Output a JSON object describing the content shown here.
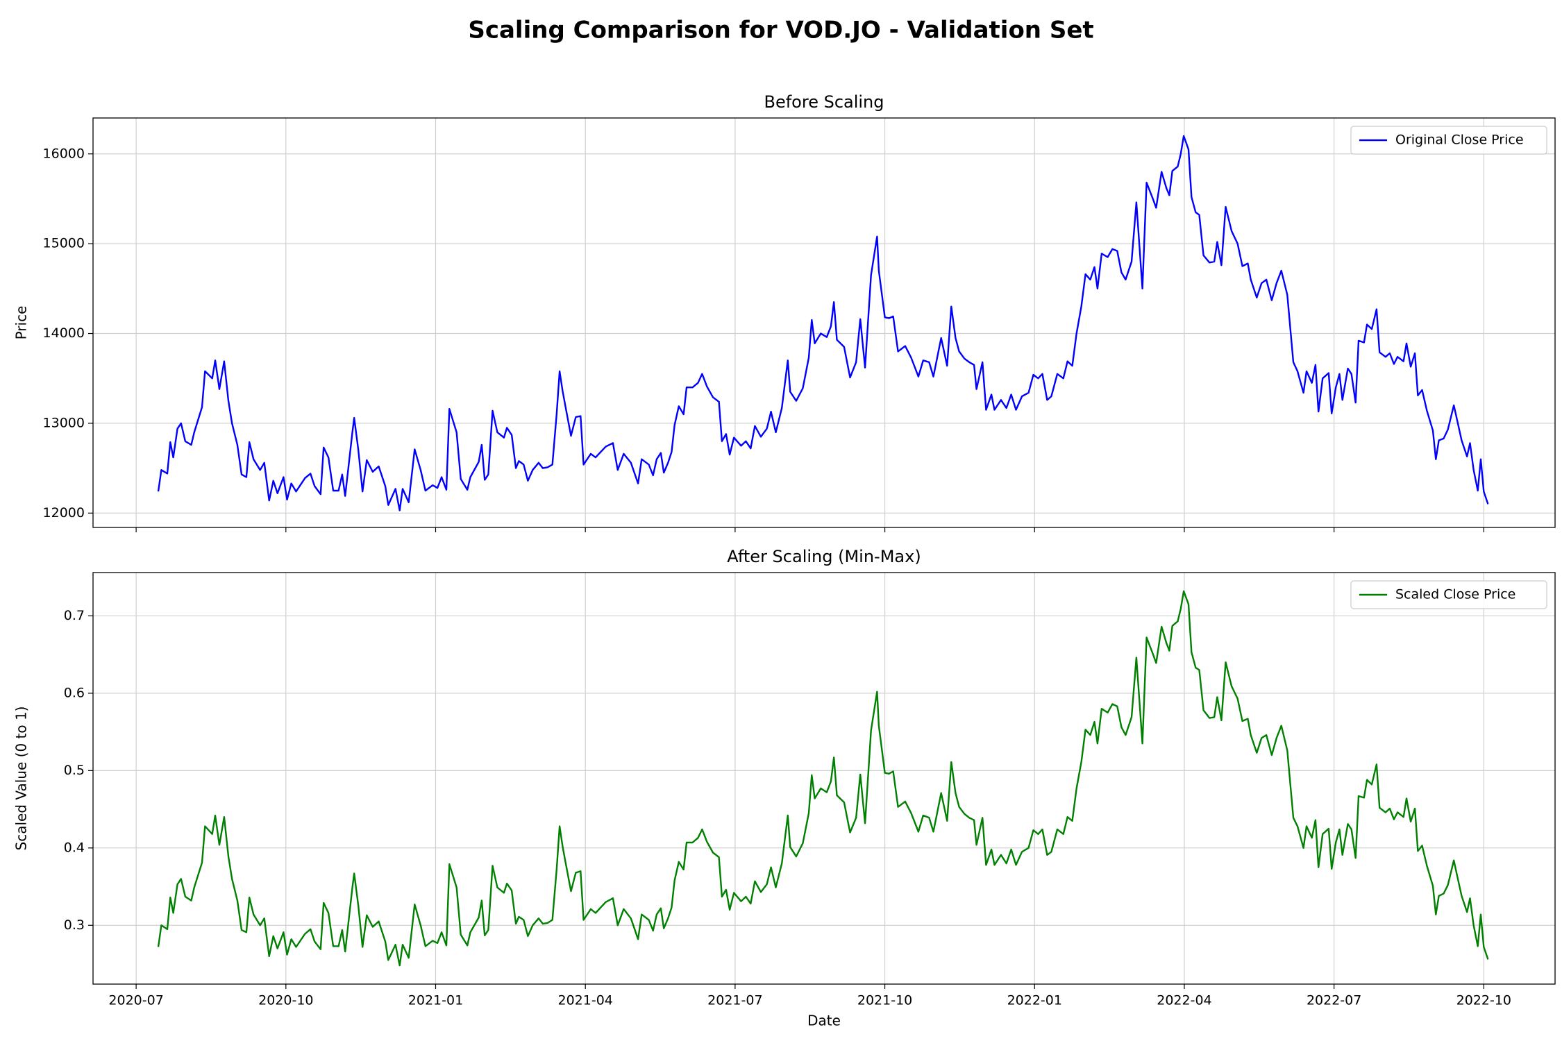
{
  "title": "Scaling Comparison for VOD.JO - Validation Set",
  "chart_data": [
    {
      "type": "line",
      "title": "Before Scaling",
      "ylabel": "Price",
      "sharex": true,
      "grid": true,
      "legend": "upper right",
      "ylim": [
        11840,
        16400
      ],
      "yticks": [
        12000,
        13000,
        14000,
        15000,
        16000
      ],
      "series": [
        {
          "name": "Original Close Price",
          "color": "#0000ff",
          "values": [
            12240,
            12480,
            12440,
            12790,
            12620,
            12940,
            13000,
            12800,
            12760,
            12900,
            13180,
            13580,
            13500,
            13700,
            13380,
            13690,
            13250,
            13000,
            12760,
            12430,
            12400,
            12790,
            12600,
            12480,
            12560,
            12140,
            12360,
            12220,
            12400,
            12150,
            12330,
            12240,
            12390,
            12440,
            12300,
            12210,
            12730,
            12620,
            12250,
            12250,
            12430,
            12190,
            12900,
            13060,
            12700,
            12240,
            12590,
            12460,
            12520,
            12300,
            12090,
            12270,
            12030,
            12270,
            12120,
            12710,
            12480,
            12250,
            12310,
            12280,
            12400,
            12260,
            13160,
            12900,
            12380,
            12260,
            12400,
            12570,
            12760,
            12370,
            12430,
            13140,
            12900,
            12840,
            12950,
            12870,
            12500,
            12580,
            12540,
            12360,
            12480,
            12560,
            12500,
            12510,
            12540,
            13100,
            13580,
            13360,
            13180,
            12860,
            13070,
            13080,
            12540,
            12660,
            12620,
            12740,
            12780,
            12480,
            12660,
            12560,
            12330,
            12600,
            12540,
            12420,
            12600,
            12670,
            12450,
            12560,
            12680,
            12980,
            13190,
            13100,
            13400,
            13400,
            13450,
            13550,
            13410,
            13290,
            13240,
            12800,
            12880,
            12650,
            12840,
            12750,
            12800,
            12720,
            12970,
            12850,
            12940,
            13130,
            12900,
            13170,
            13700,
            13350,
            13250,
            13390,
            13730,
            14150,
            13890,
            14000,
            13960,
            14080,
            14350,
            13930,
            13850,
            13510,
            13680,
            14160,
            13620,
            14650,
            15080,
            14700,
            14180,
            14170,
            14190,
            13800,
            13860,
            13730,
            13520,
            13700,
            13680,
            13520,
            13950,
            13640,
            14300,
            13950,
            13800,
            13720,
            13680,
            13650,
            13380,
            13680,
            13150,
            13320,
            13150,
            13260,
            13170,
            13320,
            13150,
            13300,
            13340,
            13540,
            13500,
            13550,
            13260,
            13300,
            13550,
            13500,
            13690,
            13640,
            14000,
            14300,
            14660,
            14600,
            14740,
            14500,
            14890,
            14850,
            14940,
            14920,
            14680,
            14600,
            14800,
            15460,
            14500,
            15680,
            15510,
            15400,
            15800,
            15620,
            15540,
            15810,
            15860,
            16000,
            16200,
            16050,
            15520,
            15350,
            15320,
            14870,
            14790,
            14800,
            15020,
            14760,
            15410,
            15140,
            15000,
            14750,
            14780,
            14600,
            14400,
            14560,
            14600,
            14370,
            14560,
            14700,
            14430,
            13680,
            13580,
            13340,
            13580,
            13450,
            13650,
            13130,
            13500,
            13560,
            13110,
            13400,
            13550,
            13260,
            13610,
            13550,
            13230,
            13920,
            13900,
            14100,
            14050,
            14270,
            13790,
            13740,
            13780,
            13660,
            13740,
            13690,
            13890,
            13630,
            13780,
            13310,
            13370,
            13140,
            12920,
            12600,
            12810,
            12830,
            12930,
            13200,
            13050,
            12810,
            12630,
            12780,
            12480,
            12250,
            12600,
            12240,
            12100
          ]
        }
      ]
    },
    {
      "type": "line",
      "title": "After Scaling (Min-Max)",
      "xlabel": "Date",
      "ylabel": "Scaled Value (0 to 1)",
      "grid": true,
      "legend": "upper right",
      "xlim": [
        2020.428,
        2022.869
      ],
      "xticks": [
        {
          "value": 2020.5,
          "label": "2020-07"
        },
        {
          "value": 2020.75,
          "label": "2020-10"
        },
        {
          "value": 2021.0,
          "label": "2021-01"
        },
        {
          "value": 2021.25,
          "label": "2021-04"
        },
        {
          "value": 2021.5,
          "label": "2021-07"
        },
        {
          "value": 2021.75,
          "label": "2021-10"
        },
        {
          "value": 2022.0,
          "label": "2022-01"
        },
        {
          "value": 2022.25,
          "label": "2022-04"
        },
        {
          "value": 2022.5,
          "label": "2022-07"
        },
        {
          "value": 2022.75,
          "label": "2022-10"
        }
      ],
      "ylim": [
        0.224,
        0.756
      ],
      "yticks": [
        0.3,
        0.4,
        0.5,
        0.6,
        0.7
      ],
      "x": [
        2020.537,
        2020.542,
        2020.552,
        2020.557,
        2020.562,
        2020.569,
        2020.575,
        2020.582,
        2020.592,
        2020.597,
        2020.61,
        2020.615,
        2020.627,
        2020.632,
        2020.639,
        2020.647,
        2020.654,
        2020.66,
        2020.669,
        2020.676,
        2020.684,
        2020.689,
        2020.696,
        2020.707,
        2020.714,
        2020.722,
        2020.729,
        2020.736,
        2020.746,
        2020.752,
        2020.759,
        2020.767,
        2020.782,
        2020.791,
        2020.798,
        2020.808,
        2020.813,
        2020.821,
        2020.829,
        2020.838,
        2020.844,
        2020.849,
        2020.861,
        2020.864,
        2020.871,
        2020.878,
        2020.885,
        2020.895,
        2020.905,
        2020.916,
        2020.921,
        2020.933,
        2020.94,
        2020.945,
        2020.955,
        2020.965,
        2020.975,
        2020.983,
        2020.995,
        2021.003,
        2021.01,
        2021.018,
        2021.023,
        2021.035,
        2021.042,
        2021.053,
        2021.058,
        2021.072,
        2021.077,
        2021.082,
        2021.088,
        2021.095,
        2021.103,
        2021.114,
        2021.119,
        2021.127,
        2021.134,
        2021.139,
        2021.147,
        2021.154,
        2021.162,
        2021.172,
        2021.179,
        2021.187,
        2021.195,
        2021.202,
        2021.207,
        2021.212,
        2021.217,
        2021.226,
        2021.234,
        2021.242,
        2021.247,
        2021.259,
        2021.267,
        2021.284,
        2021.296,
        2021.304,
        2021.314,
        2021.326,
        2021.338,
        2021.344,
        2021.356,
        2021.363,
        2021.369,
        2021.376,
        2021.381,
        2021.388,
        2021.394,
        2021.399,
        2021.406,
        2021.414,
        2021.419,
        2021.429,
        2021.438,
        2021.445,
        2021.453,
        2021.463,
        2021.473,
        2021.478,
        2021.485,
        2021.491,
        2021.498,
        2021.51,
        2021.518,
        2021.526,
        2021.533,
        2021.543,
        2021.553,
        2021.56,
        2021.568,
        2021.578,
        2021.588,
        2021.592,
        2021.602,
        2021.613,
        2021.623,
        2021.628,
        2021.633,
        2021.643,
        2021.653,
        2021.66,
        2021.665,
        2021.67,
        2021.682,
        2021.692,
        2021.702,
        2021.709,
        2021.717,
        2021.727,
        2021.737,
        2021.74,
        2021.75,
        2021.757,
        2021.764,
        2021.772,
        2021.784,
        2021.794,
        2021.806,
        2021.814,
        2021.824,
        2021.831,
        2021.844,
        2021.854,
        2021.861,
        2021.868,
        2021.874,
        2021.883,
        2021.891,
        2021.899,
        2021.903,
        2021.913,
        2021.919,
        2021.928,
        2021.933,
        2021.944,
        2021.953,
        2021.961,
        2021.969,
        2021.979,
        2021.99,
        2021.998,
        2022.006,
        2022.013,
        2022.021,
        2022.028,
        2022.038,
        2022.048,
        2022.055,
        2022.063,
        2022.07,
        2022.078,
        2022.085,
        2022.093,
        2022.1,
        2022.105,
        2022.112,
        2022.122,
        2022.13,
        2022.138,
        2022.145,
        2022.152,
        2022.162,
        2022.17,
        2022.18,
        2022.187,
        2022.197,
        2022.203,
        2022.212,
        2022.22,
        2022.225,
        2022.23,
        2022.239,
        2022.244,
        2022.249,
        2022.257,
        2022.262,
        2022.269,
        2022.275,
        2022.282,
        2022.292,
        2022.3,
        2022.305,
        2022.312,
        2022.319,
        2022.329,
        2022.339,
        2022.347,
        2022.356,
        2022.361,
        2022.371,
        2022.379,
        2022.387,
        2022.396,
        2022.404,
        2022.412,
        2022.422,
        2022.432,
        2022.439,
        2022.449,
        2022.454,
        2022.463,
        2022.469,
        2022.474,
        2022.481,
        2022.491,
        2022.496,
        2022.503,
        2022.509,
        2022.514,
        2022.523,
        2022.529,
        2022.536,
        2022.541,
        2022.55,
        2022.555,
        2022.563,
        2022.571,
        2022.576,
        2022.586,
        2022.593,
        2022.6,
        2022.606,
        2022.616,
        2022.621,
        2022.628,
        2022.635,
        2022.64,
        2022.647,
        2022.655,
        2022.665,
        2022.67,
        2022.675,
        2022.683,
        2022.69,
        2022.7,
        2022.705,
        2022.713,
        2022.722,
        2022.727,
        2022.733,
        2022.74,
        2022.745,
        2022.75,
        2022.757
      ],
      "series": [
        {
          "name": "Scaled Close Price",
          "color": "#008000",
          "values": [
            0.272,
            0.3,
            0.295,
            0.336,
            0.316,
            0.353,
            0.36,
            0.337,
            0.332,
            0.349,
            0.381,
            0.428,
            0.418,
            0.442,
            0.404,
            0.44,
            0.389,
            0.36,
            0.332,
            0.294,
            0.291,
            0.336,
            0.314,
            0.3,
            0.309,
            0.26,
            0.286,
            0.27,
            0.291,
            0.262,
            0.282,
            0.272,
            0.289,
            0.295,
            0.279,
            0.269,
            0.329,
            0.316,
            0.273,
            0.273,
            0.294,
            0.266,
            0.349,
            0.367,
            0.325,
            0.272,
            0.313,
            0.298,
            0.305,
            0.279,
            0.255,
            0.275,
            0.248,
            0.275,
            0.258,
            0.327,
            0.3,
            0.273,
            0.28,
            0.277,
            0.291,
            0.274,
            0.379,
            0.349,
            0.288,
            0.274,
            0.291,
            0.31,
            0.332,
            0.287,
            0.294,
            0.377,
            0.349,
            0.342,
            0.354,
            0.345,
            0.302,
            0.311,
            0.307,
            0.286,
            0.3,
            0.309,
            0.302,
            0.303,
            0.307,
            0.372,
            0.428,
            0.402,
            0.381,
            0.344,
            0.368,
            0.37,
            0.307,
            0.321,
            0.316,
            0.33,
            0.335,
            0.3,
            0.321,
            0.309,
            0.282,
            0.314,
            0.307,
            0.293,
            0.314,
            0.322,
            0.296,
            0.309,
            0.323,
            0.358,
            0.382,
            0.372,
            0.407,
            0.407,
            0.413,
            0.424,
            0.408,
            0.394,
            0.388,
            0.337,
            0.346,
            0.32,
            0.342,
            0.331,
            0.337,
            0.328,
            0.357,
            0.343,
            0.353,
            0.375,
            0.349,
            0.38,
            0.442,
            0.401,
            0.389,
            0.406,
            0.445,
            0.494,
            0.464,
            0.477,
            0.472,
            0.486,
            0.517,
            0.468,
            0.459,
            0.42,
            0.439,
            0.495,
            0.432,
            0.552,
            0.602,
            0.558,
            0.497,
            0.496,
            0.499,
            0.453,
            0.46,
            0.445,
            0.421,
            0.442,
            0.439,
            0.421,
            0.471,
            0.435,
            0.511,
            0.471,
            0.453,
            0.444,
            0.439,
            0.436,
            0.404,
            0.439,
            0.378,
            0.398,
            0.378,
            0.391,
            0.38,
            0.398,
            0.378,
            0.395,
            0.4,
            0.423,
            0.418,
            0.424,
            0.391,
            0.395,
            0.424,
            0.418,
            0.44,
            0.435,
            0.477,
            0.511,
            0.553,
            0.546,
            0.563,
            0.535,
            0.58,
            0.575,
            0.586,
            0.583,
            0.556,
            0.546,
            0.569,
            0.646,
            0.535,
            0.672,
            0.652,
            0.639,
            0.686,
            0.665,
            0.655,
            0.687,
            0.693,
            0.709,
            0.732,
            0.715,
            0.653,
            0.633,
            0.63,
            0.578,
            0.568,
            0.569,
            0.595,
            0.565,
            0.64,
            0.609,
            0.593,
            0.564,
            0.567,
            0.546,
            0.523,
            0.542,
            0.546,
            0.52,
            0.542,
            0.558,
            0.526,
            0.439,
            0.428,
            0.4,
            0.428,
            0.413,
            0.436,
            0.375,
            0.418,
            0.425,
            0.373,
            0.407,
            0.424,
            0.391,
            0.431,
            0.424,
            0.387,
            0.467,
            0.465,
            0.488,
            0.482,
            0.508,
            0.452,
            0.446,
            0.451,
            0.437,
            0.446,
            0.44,
            0.464,
            0.434,
            0.451,
            0.396,
            0.403,
            0.377,
            0.351,
            0.314,
            0.338,
            0.341,
            0.352,
            0.384,
            0.366,
            0.338,
            0.317,
            0.335,
            0.3,
            0.273,
            0.314,
            0.272,
            0.256
          ]
        }
      ]
    }
  ]
}
